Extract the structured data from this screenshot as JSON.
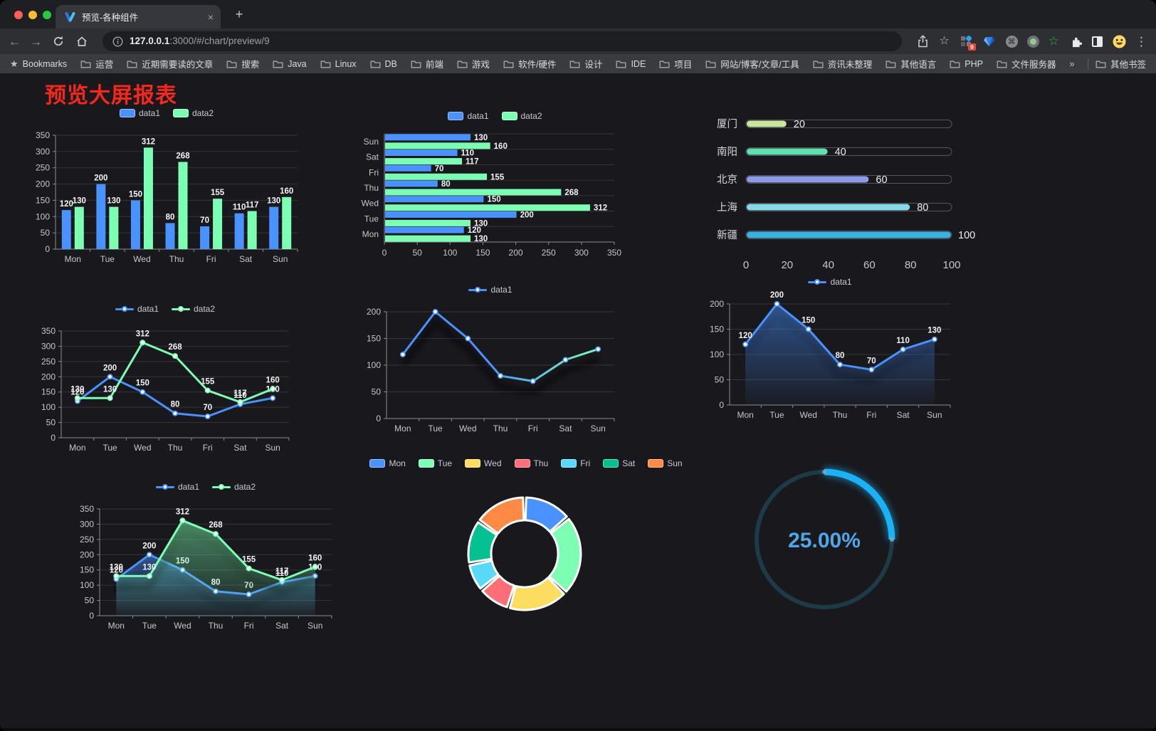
{
  "browser": {
    "tab": {
      "title": "预览-各种组件",
      "close_glyph": "×"
    },
    "new_tab_glyph": "+",
    "nav": {
      "back_glyph": "←",
      "forward_glyph": "→"
    },
    "url": {
      "host": "127.0.0.1",
      "rest": ":3000/#/chart/preview/9"
    },
    "actions": {
      "bookmark_star_glyph": "☆",
      "extension_badge": "9",
      "command_glyph": "⌘",
      "green_star_glyph": "☆",
      "kebab_glyph": "⋮"
    },
    "bookmarks_bar": {
      "star_glyph": "★",
      "label": "Bookmarks",
      "items": [
        "运营",
        "近期需要读的文章",
        "搜索",
        "Java",
        "Linux",
        "DB",
        "前端",
        "游戏",
        "软件/硬件",
        "设计",
        "IDE",
        "项目",
        "网站/博客/文章/工具",
        "资讯未整理",
        "其他语言",
        "PHP",
        "文件服务器"
      ],
      "overflow_glyph": "»",
      "other_label": "其他书签"
    }
  },
  "page": {
    "title": "预览大屏报表",
    "title_color": "#f4291c",
    "background": "#18181d"
  },
  "palette": {
    "blue": "#4992ff",
    "green": "#7cffb2",
    "yellow": "#fddd60",
    "red": "#ff6e76",
    "cyan": "#58d9f9",
    "teal": "#05c091",
    "orange": "#ff8a45"
  },
  "chart_data": [
    {
      "id": "bar-vertical",
      "type": "bar",
      "categories": [
        "Mon",
        "Tue",
        "Wed",
        "Thu",
        "Fri",
        "Sat",
        "Sun"
      ],
      "series": [
        {
          "name": "data1",
          "color": "#4992ff",
          "values": [
            120,
            200,
            150,
            80,
            70,
            110,
            130
          ]
        },
        {
          "name": "data2",
          "color": "#7cffb2",
          "values": [
            130,
            130,
            312,
            268,
            155,
            117,
            160
          ]
        }
      ],
      "ylim": [
        0,
        350
      ],
      "ystep": 50,
      "show_labels": true,
      "legend_position": "top",
      "grid": true
    },
    {
      "id": "bar-horizontal",
      "type": "hbar",
      "categories": [
        "Mon",
        "Tue",
        "Wed",
        "Thu",
        "Fri",
        "Sat",
        "Sun"
      ],
      "series": [
        {
          "name": "data1",
          "color": "#4992ff",
          "values": [
            120,
            200,
            150,
            80,
            70,
            110,
            130
          ]
        },
        {
          "name": "data2",
          "color": "#7cffb2",
          "values": [
            130,
            130,
            312,
            268,
            155,
            117,
            160
          ]
        }
      ],
      "xlim": [
        0,
        350
      ],
      "xstep": 50,
      "show_labels": true,
      "legend_position": "top",
      "grid": true
    },
    {
      "id": "city-progress",
      "type": "progress",
      "max": 100,
      "items": [
        {
          "label": "厦门",
          "value": 20,
          "color": "#c9e79c"
        },
        {
          "label": "南阳",
          "value": 40,
          "color": "#5fe0b0"
        },
        {
          "label": "北京",
          "value": 60,
          "color": "#8e9ae6"
        },
        {
          "label": "上海",
          "value": 80,
          "color": "#87d8e5"
        },
        {
          "label": "新疆",
          "value": 100,
          "color": "#38b1e3"
        }
      ],
      "axis_ticks": [
        0,
        20,
        40,
        60,
        80,
        100
      ]
    },
    {
      "id": "line-two-series",
      "type": "line",
      "categories": [
        "Mon",
        "Tue",
        "Wed",
        "Thu",
        "Fri",
        "Sat",
        "Sun"
      ],
      "series": [
        {
          "name": "data1",
          "color": "#4992ff",
          "values": [
            120,
            200,
            150,
            80,
            70,
            110,
            130
          ]
        },
        {
          "name": "data2",
          "color": "#7cffb2",
          "values": [
            130,
            130,
            312,
            268,
            155,
            117,
            160
          ]
        }
      ],
      "ylim": [
        0,
        350
      ],
      "ystep": 50,
      "show_labels": true,
      "legend_position": "top",
      "grid": true
    },
    {
      "id": "line-gradient",
      "type": "line",
      "categories": [
        "Mon",
        "Tue",
        "Wed",
        "Thu",
        "Fri",
        "Sat",
        "Sun"
      ],
      "series": [
        {
          "name": "data1",
          "color": "#4992ff",
          "color_end": "#7cffb2",
          "values": [
            120,
            200,
            150,
            80,
            70,
            110,
            130
          ]
        }
      ],
      "ylim": [
        0,
        200
      ],
      "ystep": 50,
      "show_labels": false,
      "shadow": true,
      "legend_position": "top",
      "grid": true
    },
    {
      "id": "area-single",
      "type": "line",
      "area": true,
      "categories": [
        "Mon",
        "Tue",
        "Wed",
        "Thu",
        "Fri",
        "Sat",
        "Sun"
      ],
      "series": [
        {
          "name": "data1",
          "color": "#4992ff",
          "values": [
            120,
            200,
            150,
            80,
            70,
            110,
            130
          ]
        }
      ],
      "ylim": [
        0,
        200
      ],
      "ystep": 50,
      "show_labels": true,
      "shadow": true,
      "legend_position": "top",
      "grid": true
    },
    {
      "id": "area-two",
      "type": "line",
      "area": true,
      "categories": [
        "Mon",
        "Tue",
        "Wed",
        "Thu",
        "Fri",
        "Sat",
        "Sun"
      ],
      "series": [
        {
          "name": "data1",
          "color": "#4992ff",
          "values": [
            120,
            200,
            150,
            80,
            70,
            110,
            130
          ]
        },
        {
          "name": "data2",
          "color": "#7cffb2",
          "values": [
            130,
            130,
            312,
            268,
            155,
            117,
            160
          ]
        }
      ],
      "ylim": [
        0,
        350
      ],
      "ystep": 50,
      "show_labels": true,
      "shadow": true,
      "legend_position": "top",
      "grid": true
    },
    {
      "id": "week-donut",
      "type": "donut",
      "legend_position": "top",
      "items": [
        {
          "label": "Mon",
          "value": 120,
          "color": "#4992ff"
        },
        {
          "label": "Tue",
          "value": 200,
          "color": "#7cffb2"
        },
        {
          "label": "Wed",
          "value": 150,
          "color": "#fddd60"
        },
        {
          "label": "Thu",
          "value": 80,
          "color": "#ff6e76"
        },
        {
          "label": "Fri",
          "value": 70,
          "color": "#58d9f9"
        },
        {
          "label": "Sat",
          "value": 110,
          "color": "#05c091"
        },
        {
          "label": "Sun",
          "value": 130,
          "color": "#ff8a45"
        }
      ]
    },
    {
      "id": "percent-gauge",
      "type": "gauge",
      "value": 25,
      "max": 100,
      "display": "25.00%",
      "color": "#1bb1f5",
      "track_color": "#1d3b47",
      "text_color": "#4fa6e8"
    }
  ]
}
